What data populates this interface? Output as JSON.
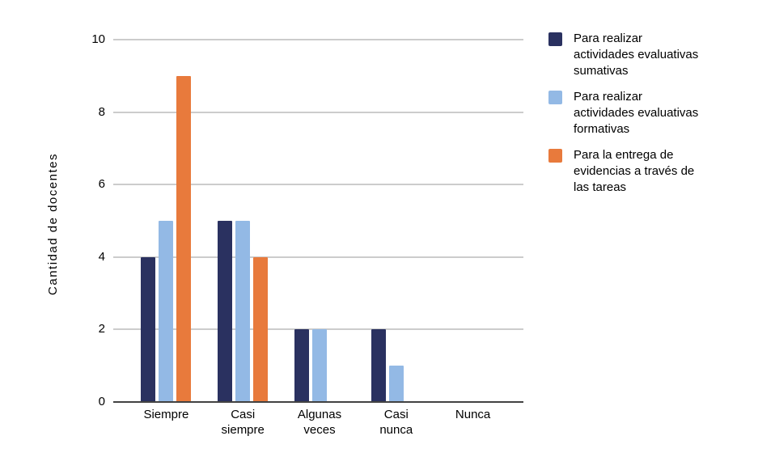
{
  "figure": {
    "background": "#ffffff",
    "gridline_color": "#cccccc",
    "baseline_color": "#424242",
    "text_color": "#000000"
  },
  "chart_data": {
    "type": "bar",
    "title": "",
    "xlabel": "",
    "ylabel": "Cantidad de docentes",
    "ylim": [
      0,
      10
    ],
    "yticks": [
      0,
      2,
      4,
      6,
      8,
      10
    ],
    "grid": true,
    "legend_position": "right",
    "categories": [
      "Siempre",
      "Casi siempre",
      "Algunas veces",
      "Casi nunca",
      "Nunca"
    ],
    "xtick_lines": [
      [
        "Siempre"
      ],
      [
        "Casi",
        "siempre"
      ],
      [
        "Algunas",
        "veces"
      ],
      [
        "Casi",
        "nunca"
      ],
      [
        "Nunca"
      ]
    ],
    "series": [
      {
        "name": "Para realizar actividades evaluativas sumativas",
        "legend_lines": [
          "Para realizar",
          "actividades evaluativas",
          "sumativas"
        ],
        "color": "#2A3160",
        "values": [
          4,
          5,
          2,
          2,
          0
        ]
      },
      {
        "name": "Para realizar actividades evaluativas formativas",
        "legend_lines": [
          "Para realizar",
          "actividades evaluativas",
          "formativas"
        ],
        "color": "#93B9E5",
        "values": [
          5,
          5,
          2,
          1,
          0
        ]
      },
      {
        "name": "Para la entrega de evidencias a través de las tareas",
        "legend_lines": [
          "Para la entrega de",
          "evidencias a través de",
          "las tareas"
        ],
        "color": "#E87A3C",
        "values": [
          9,
          4,
          0,
          0,
          0
        ]
      }
    ]
  }
}
